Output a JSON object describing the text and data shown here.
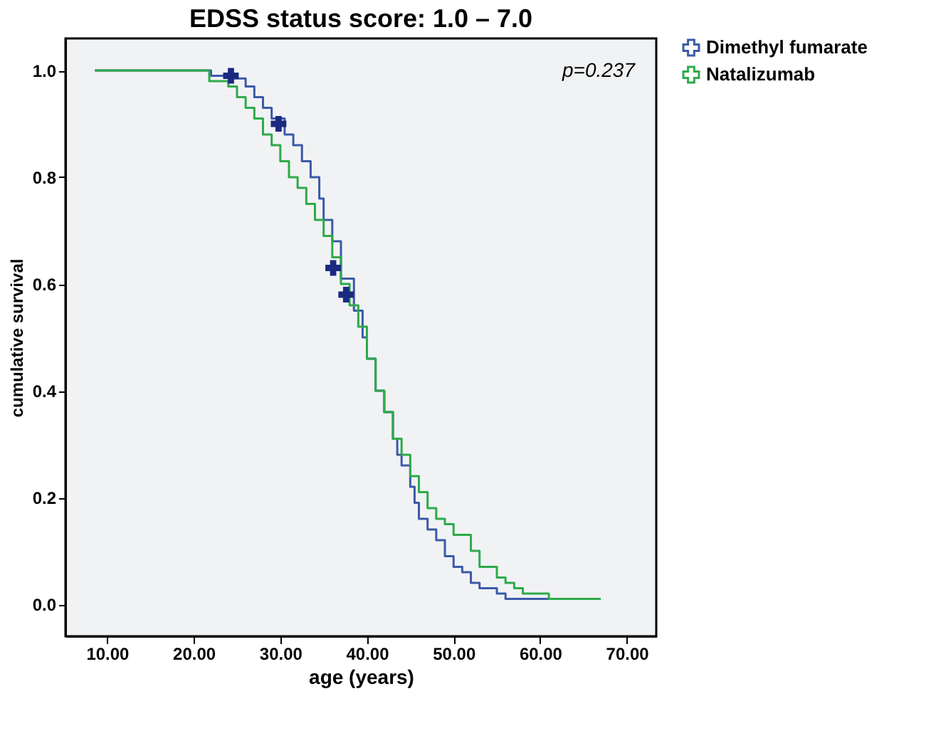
{
  "chart_data": {
    "type": "step",
    "title": "EDSS status score: 1.0 – 7.0",
    "xlabel": "age (years)",
    "ylabel": "cumulative survival",
    "xlim": [
      5.2,
      73.4
    ],
    "ylim": [
      -0.06,
      1.06
    ],
    "xticks": [
      {
        "value": 10,
        "label": "10.00"
      },
      {
        "value": 20,
        "label": "20.00"
      },
      {
        "value": 30,
        "label": "30.00"
      },
      {
        "value": 40,
        "label": "40.00"
      },
      {
        "value": 50,
        "label": "50.00"
      },
      {
        "value": 60,
        "label": "60.00"
      },
      {
        "value": 70,
        "label": "70.00"
      }
    ],
    "yticks": [
      {
        "value": 0,
        "label": "0.0"
      },
      {
        "value": 0.2,
        "label": "0.2"
      },
      {
        "value": 0.4,
        "label": "0.4"
      },
      {
        "value": 0.6,
        "label": "0.6"
      },
      {
        "value": 0.8,
        "label": "0.8"
      },
      {
        "value": 1,
        "label": "1.0"
      }
    ],
    "grid": false,
    "legend": "right",
    "annotations": [
      "p=0.237"
    ],
    "series": [
      {
        "name": "Dimethyl fumarate",
        "color": "#3b5aa8",
        "x": [
          8.6,
          22,
          24,
          26,
          27,
          28,
          29,
          30.5,
          31.5,
          32.5,
          33.5,
          34.5,
          35,
          36,
          37,
          38.5,
          39.5,
          40,
          41,
          42,
          43,
          43.5,
          44,
          45,
          45.5,
          46,
          47,
          48,
          49,
          50,
          51,
          52,
          53,
          55,
          56,
          61.5
        ],
        "values": [
          1.0,
          0.99,
          0.985,
          0.97,
          0.95,
          0.93,
          0.91,
          0.88,
          0.86,
          0.83,
          0.8,
          0.76,
          0.72,
          0.68,
          0.61,
          0.55,
          0.5,
          0.46,
          0.4,
          0.36,
          0.31,
          0.28,
          0.26,
          0.22,
          0.19,
          0.16,
          0.14,
          0.12,
          0.09,
          0.07,
          0.06,
          0.04,
          0.03,
          0.02,
          0.01,
          0.01
        ]
      },
      {
        "name": "Natalizumab",
        "color": "#2eaa4a",
        "x": [
          8.6,
          21.8,
          24,
          25,
          26,
          27,
          28,
          29,
          30,
          31,
          32,
          33,
          34,
          35,
          36,
          37,
          38,
          39,
          40,
          41,
          42,
          43,
          44,
          45,
          46,
          47,
          48,
          49,
          50,
          52,
          53,
          55,
          56,
          57,
          58,
          61,
          67
        ],
        "values": [
          1.0,
          0.98,
          0.97,
          0.95,
          0.93,
          0.91,
          0.88,
          0.86,
          0.83,
          0.8,
          0.78,
          0.75,
          0.72,
          0.69,
          0.65,
          0.6,
          0.56,
          0.52,
          0.46,
          0.4,
          0.36,
          0.31,
          0.28,
          0.24,
          0.21,
          0.18,
          0.16,
          0.15,
          0.13,
          0.1,
          0.07,
          0.05,
          0.04,
          0.03,
          0.02,
          0.01,
          0.01
        ]
      },
      {
        "color": "#1a2a80",
        "type": "scatter",
        "marker": "cross",
        "x": [
          24.3,
          29.8,
          36.1,
          37.6
        ],
        "values": [
          0.99,
          0.9,
          0.63,
          0.58
        ]
      }
    ]
  }
}
